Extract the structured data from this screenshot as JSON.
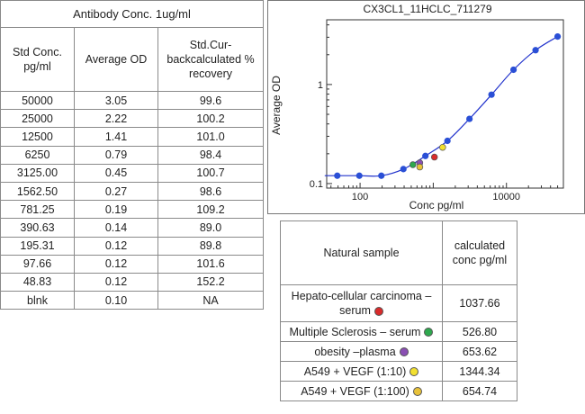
{
  "std_table": {
    "title": "Antibody Conc. 1ug/ml",
    "headers": [
      "Std Conc. pg/ml",
      "Average OD",
      "Std.Cur- backcalculated % recovery"
    ],
    "rows": [
      [
        "50000",
        "3.05",
        "99.6"
      ],
      [
        "25000",
        "2.22",
        "100.2"
      ],
      [
        "12500",
        "1.41",
        "101.0"
      ],
      [
        "6250",
        "0.79",
        "98.4"
      ],
      [
        "3125.00",
        "0.45",
        "100.7"
      ],
      [
        "1562.50",
        "0.27",
        "98.6"
      ],
      [
        "781.25",
        "0.19",
        "109.2"
      ],
      [
        "390.63",
        "0.14",
        "89.0"
      ],
      [
        "195.31",
        "0.12",
        "89.8"
      ],
      [
        "97.66",
        "0.12",
        "101.6"
      ],
      [
        "48.83",
        "0.12",
        "152.2"
      ],
      [
        "blnk",
        "0.10",
        "NA"
      ]
    ]
  },
  "natural_table": {
    "headers": [
      "Natural sample",
      "calculated conc pg/ml"
    ],
    "rows": [
      {
        "sample": "Hepato-cellular carcinoma – serum",
        "conc": "1037.66",
        "color": "#d92b2b"
      },
      {
        "sample": "Multiple Sclerosis – serum",
        "conc": "526.80",
        "color": "#2ea84e"
      },
      {
        "sample": "obesity –plasma",
        "conc": "653.62",
        "color": "#8a4fb3"
      },
      {
        "sample": "A549 + VEGF (1:10)",
        "conc": "1344.34",
        "color": "#f2e030"
      },
      {
        "sample": "A549 + VEGF (1:100)",
        "conc": "654.74",
        "color": "#e8c23a"
      }
    ]
  },
  "chart_data": {
    "type": "scatter",
    "title": "CX3CL1_11HCLC_711279",
    "xlabel": "Conc pg/ml",
    "ylabel": "Average OD",
    "xscale": "log",
    "yscale": "log",
    "xlim": [
      35,
      60000
    ],
    "ylim": [
      0.09,
      4.5
    ],
    "x_ticks": [
      {
        "v": 100,
        "label": "100"
      },
      {
        "v": 10000,
        "label": "10000"
      }
    ],
    "y_ticks": [
      {
        "v": 0.1,
        "label": "0.1"
      },
      {
        "v": 1,
        "label": "1"
      }
    ],
    "curve_color": "#2233cc",
    "series": [
      {
        "points": [
          {
            "x": 48.83,
            "y": 0.12
          },
          {
            "x": 97.66,
            "y": 0.12
          },
          {
            "x": 195.31,
            "y": 0.12
          },
          {
            "x": 390.63,
            "y": 0.14
          },
          {
            "x": 781.25,
            "y": 0.19
          },
          {
            "x": 1562.5,
            "y": 0.27
          },
          {
            "x": 3125,
            "y": 0.45
          },
          {
            "x": 6250,
            "y": 0.79
          },
          {
            "x": 12500,
            "y": 1.41
          },
          {
            "x": 25000,
            "y": 2.22
          },
          {
            "x": 50000,
            "y": 3.05
          }
        ],
        "color": "#2a4fd6"
      }
    ],
    "samples": [
      {
        "x": 526.8,
        "y": 0.155,
        "color": "#2ea84e"
      },
      {
        "x": 653.62,
        "y": 0.162,
        "color": "#8a4fb3"
      },
      {
        "x": 654.74,
        "y": 0.147,
        "color": "#e8c23a"
      },
      {
        "x": 1037.66,
        "y": 0.185,
        "color": "#d92b2b"
      },
      {
        "x": 1344.34,
        "y": 0.232,
        "color": "#f2e030"
      }
    ]
  }
}
